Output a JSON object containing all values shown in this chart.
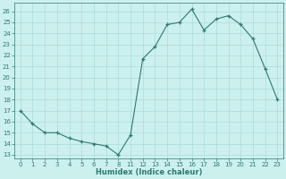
{
  "x_labels": [
    "0",
    "1",
    "2",
    "3",
    "4",
    "5",
    "6",
    "7",
    "8",
    "11",
    "12",
    "13",
    "14",
    "15",
    "16",
    "17",
    "18",
    "19",
    "20",
    "21",
    "22",
    "23"
  ],
  "y": [
    17,
    15.8,
    15,
    15,
    14.5,
    14.2,
    14,
    13.8,
    13,
    14.8,
    21.7,
    22.8,
    24.8,
    25,
    26.2,
    24.3,
    25.3,
    25.6,
    24.8,
    23.5,
    20.8,
    18
  ],
  "line_color": "#2d7a6e",
  "bg_color": "#ccf0ee",
  "grid_color": "#aaddd8",
  "xlabel": "Humidex (Indice chaleur)",
  "yticks": [
    13,
    14,
    15,
    16,
    17,
    18,
    19,
    20,
    21,
    22,
    23,
    24,
    25,
    26
  ],
  "ylim": [
    12.7,
    26.8
  ]
}
